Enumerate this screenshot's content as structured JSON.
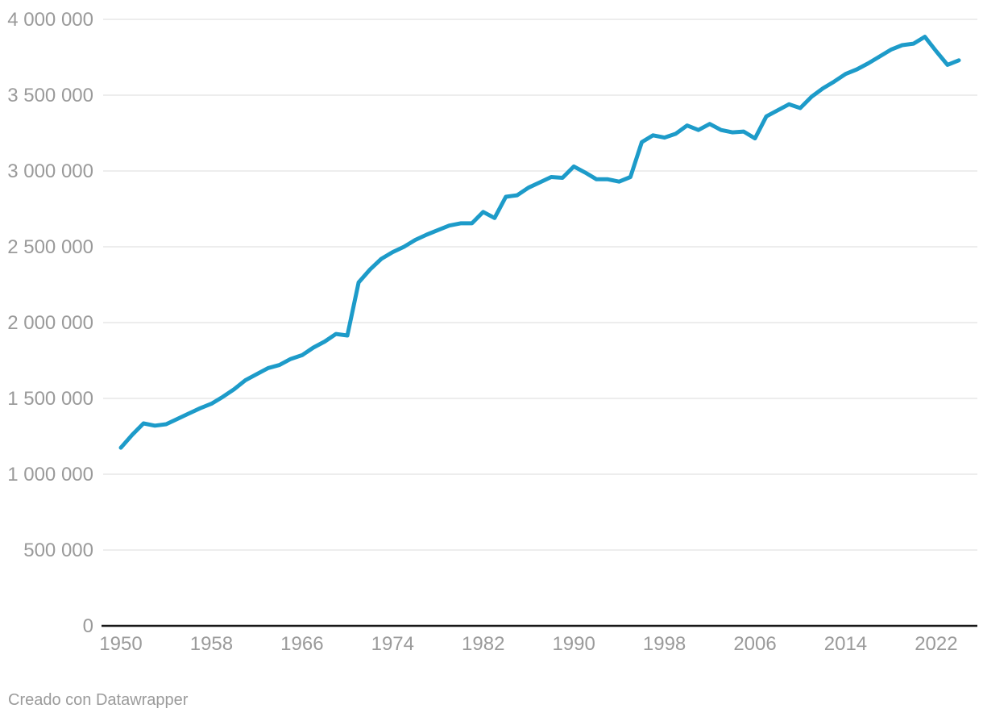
{
  "footer": {
    "attribution": "Creado con Datawrapper"
  },
  "chart_data": {
    "type": "line",
    "title": "",
    "xlabel": "",
    "ylabel": "",
    "xlim": [
      1950,
      2024
    ],
    "ylim": [
      0,
      4000000
    ],
    "grid": "horizontal",
    "legend": "none",
    "x_ticks": [
      {
        "value": 1950,
        "label": "1950"
      },
      {
        "value": 1958,
        "label": "1958"
      },
      {
        "value": 1966,
        "label": "1966"
      },
      {
        "value": 1974,
        "label": "1974"
      },
      {
        "value": 1982,
        "label": "1982"
      },
      {
        "value": 1990,
        "label": "1990"
      },
      {
        "value": 1998,
        "label": "1998"
      },
      {
        "value": 2006,
        "label": "2006"
      },
      {
        "value": 2014,
        "label": "2014"
      },
      {
        "value": 2022,
        "label": "2022"
      }
    ],
    "y_ticks": [
      {
        "value": 0,
        "label": "0"
      },
      {
        "value": 500000,
        "label": "500 000"
      },
      {
        "value": 1000000,
        "label": "1 000 000"
      },
      {
        "value": 1500000,
        "label": "1 500 000"
      },
      {
        "value": 2000000,
        "label": "2 000 000"
      },
      {
        "value": 2500000,
        "label": "2 500 000"
      },
      {
        "value": 3000000,
        "label": "3 000 000"
      },
      {
        "value": 3500000,
        "label": "3 500 000"
      },
      {
        "value": 4000000,
        "label": "4 000 000"
      }
    ],
    "x": [
      1950,
      1951,
      1952,
      1953,
      1954,
      1955,
      1956,
      1957,
      1958,
      1959,
      1960,
      1961,
      1962,
      1963,
      1964,
      1965,
      1966,
      1967,
      1968,
      1969,
      1970,
      1971,
      1972,
      1973,
      1974,
      1975,
      1976,
      1977,
      1978,
      1979,
      1980,
      1981,
      1982,
      1983,
      1984,
      1985,
      1986,
      1987,
      1988,
      1989,
      1990,
      1991,
      1992,
      1993,
      1994,
      1995,
      1996,
      1997,
      1998,
      1999,
      2000,
      2001,
      2002,
      2003,
      2004,
      2005,
      2006,
      2007,
      2008,
      2009,
      2010,
      2011,
      2012,
      2013,
      2014,
      2015,
      2016,
      2017,
      2018,
      2019,
      2020,
      2021,
      2022,
      2023,
      2024
    ],
    "values": [
      1175000,
      1260000,
      1335000,
      1320000,
      1330000,
      1365000,
      1400000,
      1435000,
      1465000,
      1510000,
      1560000,
      1620000,
      1660000,
      1700000,
      1720000,
      1760000,
      1785000,
      1835000,
      1875000,
      1925000,
      1915000,
      2265000,
      2350000,
      2420000,
      2465000,
      2500000,
      2545000,
      2580000,
      2610000,
      2640000,
      2655000,
      2655000,
      2730000,
      2690000,
      2830000,
      2840000,
      2890000,
      2925000,
      2960000,
      2955000,
      3030000,
      2990000,
      2945000,
      2945000,
      2930000,
      2960000,
      3190000,
      3235000,
      3220000,
      3245000,
      3300000,
      3270000,
      3310000,
      3270000,
      3255000,
      3260000,
      3215000,
      3360000,
      3400000,
      3440000,
      3415000,
      3490000,
      3545000,
      3590000,
      3640000,
      3670000,
      3710000,
      3755000,
      3800000,
      3830000,
      3840000,
      3885000,
      3790000,
      3700000,
      3730000
    ],
    "colors": {
      "line": "#1d9bc9",
      "grid": "#e7e7e7",
      "axis": "#181818",
      "tick_text": "#9a9a9a",
      "footer_text": "#9b9b9b"
    }
  }
}
